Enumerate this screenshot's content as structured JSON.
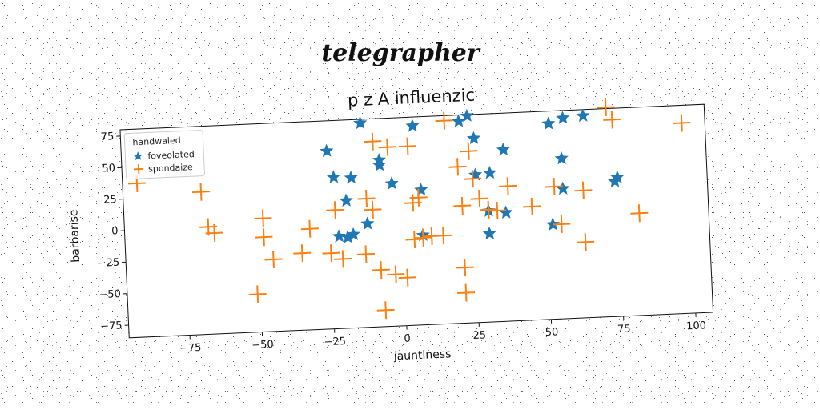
{
  "suptitle": "telegrapher",
  "chart_data": {
    "type": "scatter",
    "title": "p z A influenzic",
    "xlabel": "jauntiness",
    "ylabel": "barbarise",
    "xlim": [
      -96,
      106
    ],
    "ylim": [
      -85,
      80
    ],
    "xticks": [
      -75,
      -50,
      -25,
      0,
      25,
      50,
      75,
      100
    ],
    "yticks": [
      -75,
      -50,
      -25,
      0,
      25,
      50,
      75
    ],
    "grid": false,
    "legend": {
      "title": "handwaled",
      "placement": "top-left"
    },
    "series": [
      {
        "name": "foveolated",
        "marker": "star",
        "color": "#1f77b4",
        "points": [
          [
            -13,
            77
          ],
          [
            5,
            73
          ],
          [
            21,
            75
          ],
          [
            24,
            79
          ],
          [
            26,
            61
          ],
          [
            52,
            70
          ],
          [
            57,
            74
          ],
          [
            64,
            75
          ],
          [
            -25,
            56
          ],
          [
            -7,
            47
          ],
          [
            -7,
            43
          ],
          [
            36,
            51
          ],
          [
            56,
            42
          ],
          [
            -23,
            35
          ],
          [
            -17,
            34
          ],
          [
            -3,
            28
          ],
          [
            26,
            32
          ],
          [
            31,
            33
          ],
          [
            -19,
            16
          ],
          [
            7,
            22
          ],
          [
            56,
            18
          ],
          [
            74,
            22
          ],
          [
            75,
            25
          ],
          [
            -22,
            -12
          ],
          [
            -17,
            -11
          ],
          [
            -19,
            -13
          ],
          [
            -12,
            -3
          ],
          [
            36,
            1
          ],
          [
            30,
            3
          ],
          [
            7,
            -14
          ],
          [
            30,
            -15
          ],
          [
            52,
            -10
          ]
        ]
      },
      {
        "name": "spondaize",
        "marker": "plus",
        "color": "#ff7f0e",
        "points": [
          [
            -91,
            37
          ],
          [
            -69,
            28
          ],
          [
            -67,
            0
          ],
          [
            -65,
            -5
          ],
          [
            -48,
            5
          ],
          [
            -48,
            -10
          ],
          [
            -45,
            -28
          ],
          [
            -51,
            -55
          ],
          [
            -32,
            -5
          ],
          [
            -35,
            -24
          ],
          [
            -23,
            9
          ],
          [
            -25,
            -25
          ],
          [
            -21,
            -30
          ],
          [
            -13,
            -27
          ],
          [
            -12,
            17
          ],
          [
            -10,
            8
          ],
          [
            -8,
            -40
          ],
          [
            -9,
            62
          ],
          [
            -4,
            57
          ],
          [
            -7,
            -72
          ],
          [
            -3,
            -44
          ],
          [
            1,
            -47
          ],
          [
            3,
            57
          ],
          [
            4,
            12
          ],
          [
            6,
            16
          ],
          [
            4,
            -17
          ],
          [
            7,
            -16
          ],
          [
            10,
            -15
          ],
          [
            14,
            -15
          ],
          [
            16,
            76
          ],
          [
            20,
            39
          ],
          [
            21,
            8
          ],
          [
            21,
            -41
          ],
          [
            21,
            -61
          ],
          [
            24,
            51
          ],
          [
            25,
            29
          ],
          [
            27,
            13
          ],
          [
            30,
            4
          ],
          [
            33,
            3
          ],
          [
            37,
            22
          ],
          [
            45,
            5
          ],
          [
            53,
            20
          ],
          [
            55,
            -10
          ],
          [
            63,
            16
          ],
          [
            63,
            -25
          ],
          [
            72,
            81
          ],
          [
            74,
            71
          ],
          [
            82,
            -4
          ],
          [
            98,
            66
          ]
        ]
      }
    ]
  }
}
